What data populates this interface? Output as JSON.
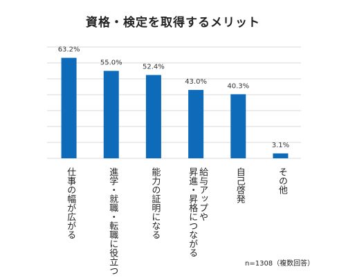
{
  "chart_data": {
    "type": "bar",
    "title": "資格・検定を取得するメリット",
    "categories": [
      "仕事の幅が広がる",
      "進学・就職・転職に役立つ",
      "能力の証明になる",
      "給与アップや\n昇進・昇格につながる",
      "自己啓発",
      "その他"
    ],
    "values": [
      63.2,
      55.0,
      52.4,
      43.0,
      40.3,
      3.1
    ],
    "value_labels": [
      "63.2%",
      "55.0%",
      "52.4%",
      "43.0%",
      "40.3%",
      "3.1%"
    ],
    "ylim": [
      0,
      70
    ],
    "grid": true,
    "bar_color": "#0e6bba",
    "grid_color": "#d9d9d9",
    "note": "n=1308（複数回答）"
  }
}
